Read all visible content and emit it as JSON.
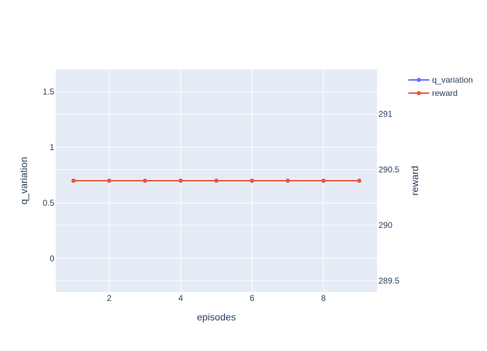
{
  "chart_data": {
    "type": "line",
    "title": "",
    "xlabel": "episodes",
    "ylabel_left": "q_variation",
    "ylabel_right": "reward",
    "x": [
      1,
      2,
      3,
      4,
      5,
      6,
      7,
      8,
      9
    ],
    "xlim": [
      0.5,
      9.5
    ],
    "ylim_left": [
      -0.3,
      1.7
    ],
    "ylim_right": [
      289.4,
      291.4
    ],
    "x_ticks": [
      2,
      4,
      6,
      8
    ],
    "y_left_ticks": [
      0,
      0.5,
      1,
      1.5
    ],
    "y_right_ticks": [
      289.5,
      290,
      290.5,
      291
    ],
    "grid": true,
    "legend_position": "top-right",
    "series": [
      {
        "name": "q_variation",
        "axis": "left",
        "color": "#636efa",
        "marker": "circle",
        "values": [
          0.7,
          0.7,
          0.7,
          0.7,
          0.7,
          0.7,
          0.7,
          0.7,
          0.7
        ]
      },
      {
        "name": "reward",
        "axis": "right",
        "color": "#ef553b",
        "marker": "circle",
        "values": [
          290.4,
          290.4,
          290.4,
          290.4,
          290.4,
          290.4,
          290.4,
          290.4,
          290.4
        ]
      }
    ],
    "colors": {
      "plot_background": "#e5ecf6",
      "grid": "#ffffff",
      "text": "#2a3f5f"
    }
  }
}
